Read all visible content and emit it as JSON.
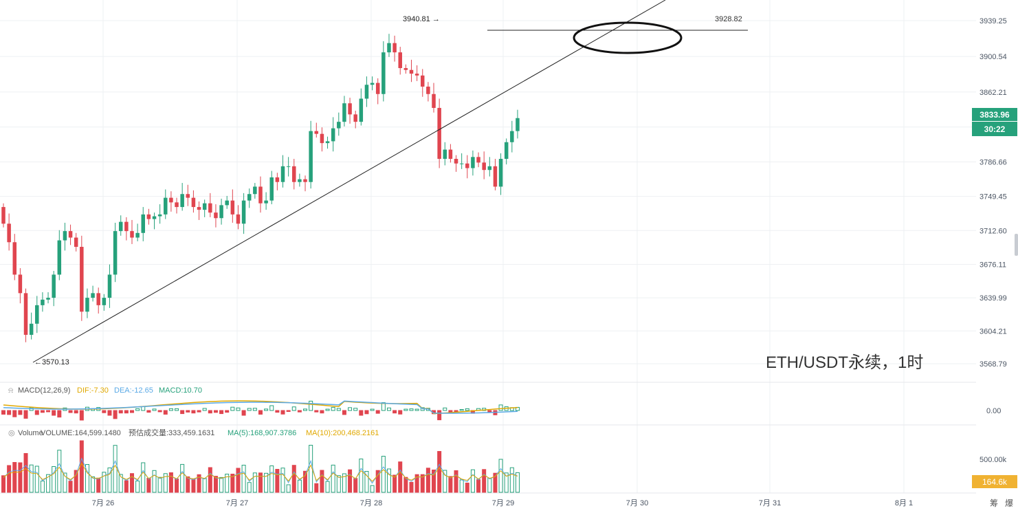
{
  "colors": {
    "up": "#26a17b",
    "down": "#e0454f",
    "grid": "#eef0f3",
    "axis_text": "#4b5563",
    "dif": "#e0a800",
    "dea": "#5aa9e6",
    "vol_ma5": "#5aa9e6",
    "vol_ma10": "#e0a800",
    "price_tag": "#26a17b",
    "vol_tag": "#f0b232"
  },
  "chart_data": {
    "type": "candlestick",
    "title": "ETH/USDT永续，1时",
    "price_axis": {
      "ticks": [
        "3939.25",
        "3900.54",
        "3862.21",
        "3786.66",
        "3749.45",
        "3712.60",
        "3676.11",
        "3639.99",
        "3604.21",
        "3568.79"
      ],
      "range": [
        3545,
        3960
      ]
    },
    "x_axis": {
      "ticks": [
        "7月 26",
        "7月 27",
        "7月 28",
        "7月 29",
        "7月 30",
        "7月 31",
        "8月 1"
      ]
    },
    "current_price": "3833.96",
    "countdown": "30:22",
    "high_label": "3940.81 →",
    "low_label": "←3570.13",
    "level_label": "3928.82",
    "level_value": 3928.82,
    "candles_close": [
      3720,
      3700,
      3665,
      3645,
      3600,
      3612,
      3632,
      3638,
      3640,
      3665,
      3702,
      3712,
      3705,
      3695,
      3625,
      3640,
      3645,
      3632,
      3640,
      3665,
      3712,
      3722,
      3712,
      3705,
      3710,
      3730,
      3725,
      3728,
      3730,
      3748,
      3743,
      3738,
      3752,
      3748,
      3738,
      3735,
      3742,
      3732,
      3726,
      3740,
      3745,
      3730,
      3720,
      3745,
      3752,
      3760,
      3742,
      3745,
      3770,
      3765,
      3782,
      3782,
      3765,
      3768,
      3765,
      3820,
      3817,
      3807,
      3809,
      3823,
      3830,
      3850,
      3838,
      3830,
      3855,
      3870,
      3872,
      3860,
      3905,
      3915,
      3905,
      3888,
      3886,
      3882,
      3880,
      3868,
      3860,
      3845,
      3790,
      3800,
      3790,
      3785,
      3785,
      3780,
      3792,
      3786,
      3778,
      3782,
      3760,
      3790,
      3808,
      3820,
      3834
    ],
    "macd": {
      "label": "MACD(12,26,9)",
      "dif_label": "DIF:-7.30",
      "dea_label": "DEA:-12.65",
      "macd_label": "MACD:10.70",
      "zero_tick": "0.00"
    },
    "volume": {
      "label": "Volume",
      "volume_label": "VOLUME:164,599.1480",
      "est_label": "预估成交量:333,459.1631",
      "ma5_label": "MA(5):168,907.3786",
      "ma10_label": "MA(10):200,468.2161",
      "tick": "500.00k",
      "current": "164.6k"
    },
    "corner_buttons": [
      "筹",
      "爆"
    ]
  }
}
